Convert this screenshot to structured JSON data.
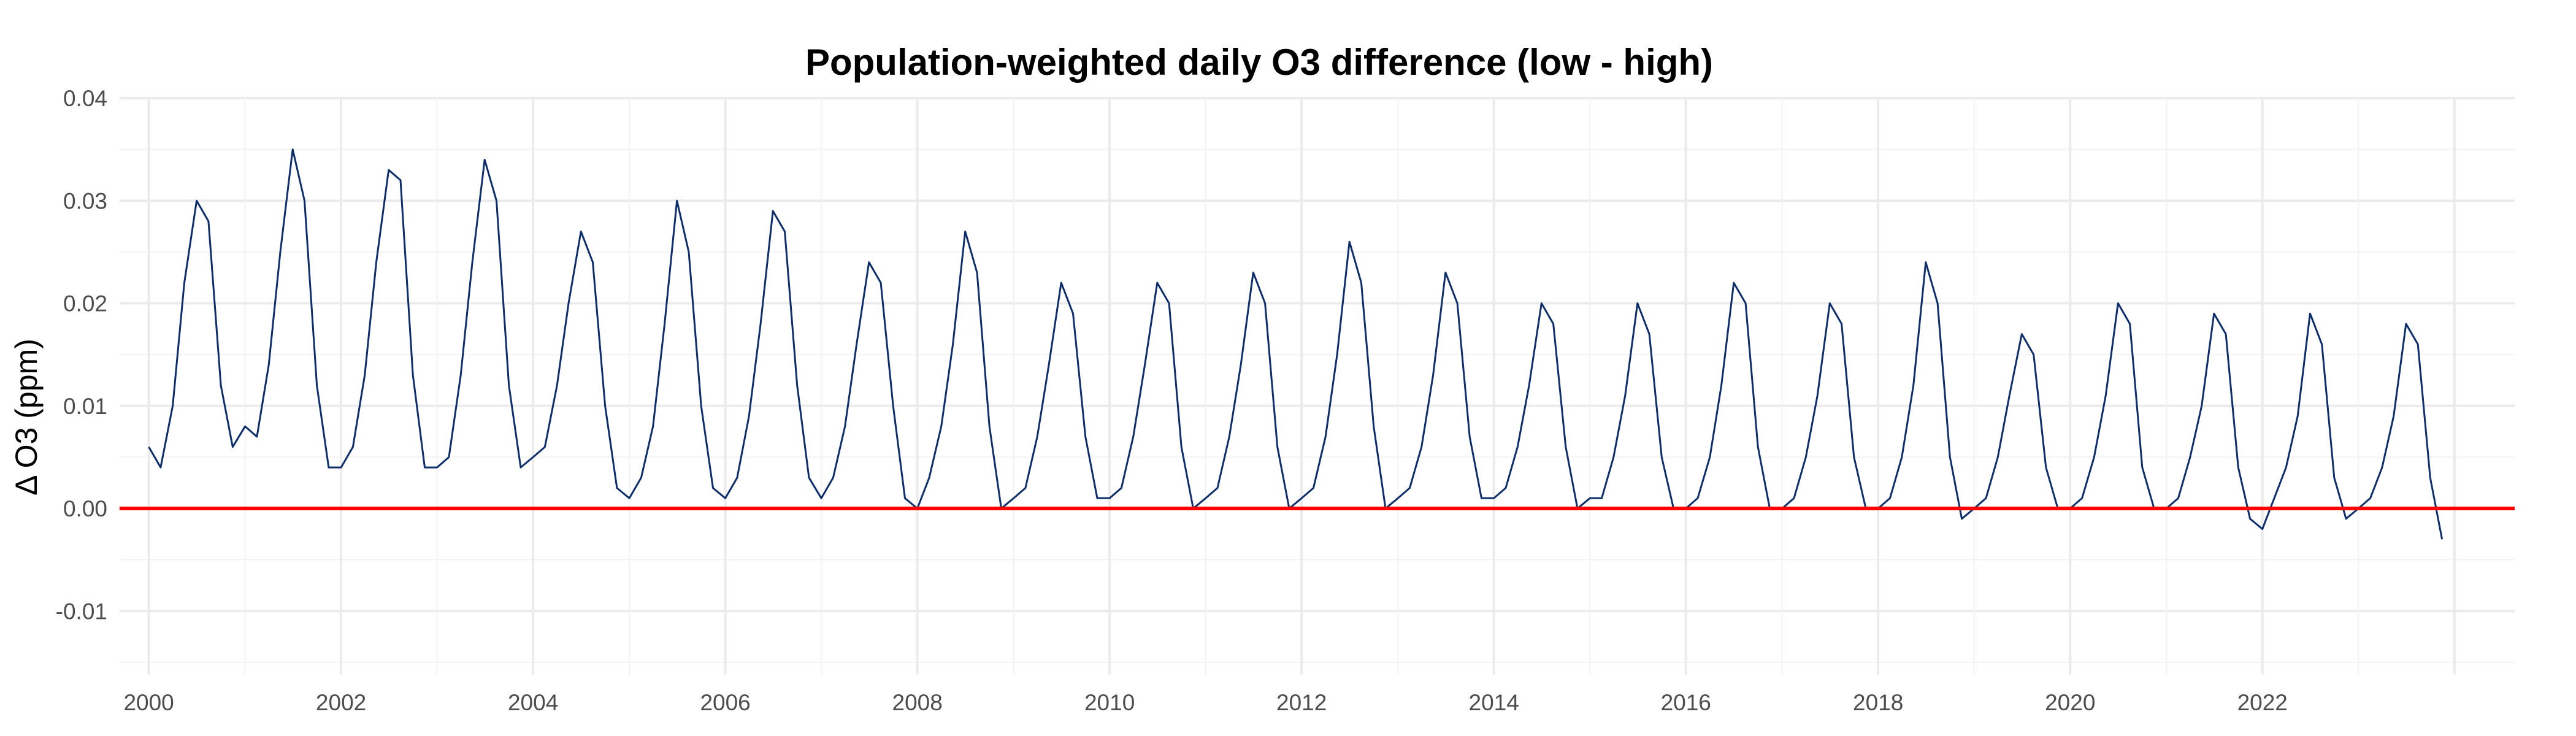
{
  "chart_data": {
    "type": "line",
    "title": "Population-weighted daily O3 difference (low - high)",
    "xlabel": "",
    "ylabel": "Δ O3 (ppm)",
    "x_unit": "date",
    "xlim": [
      "1999-09-12",
      "2024-08-17"
    ],
    "ylim": [
      -0.0162,
      0.04
    ],
    "x_ticks": [
      "2000",
      "2002",
      "2004",
      "2006",
      "2008",
      "2010",
      "2012",
      "2014",
      "2016",
      "2018",
      "2020",
      "2022"
    ],
    "y_ticks": [
      "-0.01",
      "0.00",
      "0.01",
      "0.02",
      "0.03",
      "0.04"
    ],
    "grid": true,
    "legend": "none",
    "series": [
      {
        "color": "#0d2e6b",
        "x": [
          "2000-01-01",
          "2000-02-15",
          "2000-04-01",
          "2000-05-15",
          "2000-07-01",
          "2000-08-15",
          "2000-10-01",
          "2000-11-15",
          "2001-01-01",
          "2001-02-15",
          "2001-04-01",
          "2001-05-15",
          "2001-07-01",
          "2001-08-15",
          "2001-10-01",
          "2001-11-15",
          "2002-01-01",
          "2002-02-15",
          "2002-04-01",
          "2002-05-15",
          "2002-07-01",
          "2002-08-15",
          "2002-10-01",
          "2002-11-15",
          "2003-01-01",
          "2003-02-15",
          "2003-04-01",
          "2003-05-15",
          "2003-07-01",
          "2003-08-15",
          "2003-10-01",
          "2003-11-15",
          "2004-01-01",
          "2004-02-15",
          "2004-04-01",
          "2004-05-15",
          "2004-07-01",
          "2004-08-15",
          "2004-10-01",
          "2004-11-15",
          "2005-01-01",
          "2005-02-15",
          "2005-04-01",
          "2005-05-15",
          "2005-07-01",
          "2005-08-15",
          "2005-10-01",
          "2005-11-15",
          "2006-01-01",
          "2006-02-15",
          "2006-04-01",
          "2006-05-15",
          "2006-07-01",
          "2006-08-15",
          "2006-10-01",
          "2006-11-15",
          "2007-01-01",
          "2007-02-15",
          "2007-04-01",
          "2007-05-15",
          "2007-07-01",
          "2007-08-15",
          "2007-10-01",
          "2007-11-15",
          "2008-01-01",
          "2008-02-15",
          "2008-04-01",
          "2008-05-15",
          "2008-07-01",
          "2008-08-15",
          "2008-10-01",
          "2008-11-15",
          "2009-01-01",
          "2009-02-15",
          "2009-04-01",
          "2009-05-15",
          "2009-07-01",
          "2009-08-15",
          "2009-10-01",
          "2009-11-15",
          "2010-01-01",
          "2010-02-15",
          "2010-04-01",
          "2010-05-15",
          "2010-07-01",
          "2010-08-15",
          "2010-10-01",
          "2010-11-15",
          "2011-01-01",
          "2011-02-15",
          "2011-04-01",
          "2011-05-15",
          "2011-07-01",
          "2011-08-15",
          "2011-10-01",
          "2011-11-15",
          "2012-01-01",
          "2012-02-15",
          "2012-04-01",
          "2012-05-15",
          "2012-07-01",
          "2012-08-15",
          "2012-10-01",
          "2012-11-15",
          "2013-01-01",
          "2013-02-15",
          "2013-04-01",
          "2013-05-15",
          "2013-07-01",
          "2013-08-15",
          "2013-10-01",
          "2013-11-15",
          "2014-01-01",
          "2014-02-15",
          "2014-04-01",
          "2014-05-15",
          "2014-07-01",
          "2014-08-15",
          "2014-10-01",
          "2014-11-15",
          "2015-01-01",
          "2015-02-15",
          "2015-04-01",
          "2015-05-15",
          "2015-07-01",
          "2015-08-15",
          "2015-10-01",
          "2015-11-15",
          "2016-01-01",
          "2016-02-15",
          "2016-04-01",
          "2016-05-15",
          "2016-07-01",
          "2016-08-15",
          "2016-10-01",
          "2016-11-15",
          "2017-01-01",
          "2017-02-15",
          "2017-04-01",
          "2017-05-15",
          "2017-07-01",
          "2017-08-15",
          "2017-10-01",
          "2017-11-15",
          "2018-01-01",
          "2018-02-15",
          "2018-04-01",
          "2018-05-15",
          "2018-07-01",
          "2018-08-15",
          "2018-10-01",
          "2018-11-15",
          "2019-01-01",
          "2019-02-15",
          "2019-04-01",
          "2019-05-15",
          "2019-07-01",
          "2019-08-15",
          "2019-10-01",
          "2019-11-15",
          "2020-01-01",
          "2020-02-15",
          "2020-04-01",
          "2020-05-15",
          "2020-07-01",
          "2020-08-15",
          "2020-10-01",
          "2020-11-15",
          "2021-01-01",
          "2021-02-15",
          "2021-04-01",
          "2021-05-15",
          "2021-07-01",
          "2021-08-15",
          "2021-10-01",
          "2021-11-15",
          "2022-01-01",
          "2022-02-15",
          "2022-04-01",
          "2022-05-15",
          "2022-07-01",
          "2022-08-15",
          "2022-10-01",
          "2022-11-15",
          "2023-01-01",
          "2023-02-15",
          "2023-04-01",
          "2023-05-15",
          "2023-07-01",
          "2023-08-15",
          "2023-10-01",
          "2023-11-15"
        ],
        "values": [
          0.006,
          0.004,
          0.01,
          0.022,
          0.03,
          0.028,
          0.012,
          0.006,
          0.008,
          0.007,
          0.014,
          0.025,
          0.035,
          0.03,
          0.012,
          0.004,
          0.004,
          0.006,
          0.013,
          0.024,
          0.033,
          0.032,
          0.013,
          0.004,
          0.004,
          0.005,
          0.013,
          0.024,
          0.034,
          0.03,
          0.012,
          0.004,
          0.005,
          0.006,
          0.012,
          0.02,
          0.027,
          0.024,
          0.01,
          0.002,
          0.001,
          0.003,
          0.008,
          0.018,
          0.03,
          0.025,
          0.01,
          0.002,
          0.001,
          0.003,
          0.009,
          0.018,
          0.029,
          0.027,
          0.012,
          0.003,
          0.001,
          0.003,
          0.008,
          0.016,
          0.024,
          0.022,
          0.01,
          0.001,
          0.0,
          0.003,
          0.008,
          0.016,
          0.027,
          0.023,
          0.008,
          0.0,
          0.001,
          0.002,
          0.007,
          0.014,
          0.022,
          0.019,
          0.007,
          0.001,
          0.001,
          0.002,
          0.007,
          0.014,
          0.022,
          0.02,
          0.006,
          0.0,
          0.001,
          0.002,
          0.007,
          0.014,
          0.023,
          0.02,
          0.006,
          0.0,
          0.001,
          0.002,
          0.007,
          0.015,
          0.026,
          0.022,
          0.008,
          0.0,
          0.001,
          0.002,
          0.006,
          0.013,
          0.023,
          0.02,
          0.007,
          0.001,
          0.001,
          0.002,
          0.006,
          0.012,
          0.02,
          0.018,
          0.006,
          0.0,
          0.001,
          0.001,
          0.005,
          0.011,
          0.02,
          0.017,
          0.005,
          0.0,
          0.0,
          0.001,
          0.005,
          0.012,
          0.022,
          0.02,
          0.006,
          0.0,
          0.0,
          0.001,
          0.005,
          0.011,
          0.02,
          0.018,
          0.005,
          0.0,
          0.0,
          0.001,
          0.005,
          0.012,
          0.024,
          0.02,
          0.005,
          -0.001,
          0.0,
          0.001,
          0.005,
          0.011,
          0.017,
          0.015,
          0.004,
          0.0,
          0.0,
          0.001,
          0.005,
          0.011,
          0.02,
          0.018,
          0.004,
          0.0,
          0.0,
          0.001,
          0.005,
          0.01,
          0.019,
          0.017,
          0.004,
          -0.001,
          -0.002,
          0.001,
          0.004,
          0.009,
          0.019,
          0.016,
          0.003,
          -0.001,
          0.0,
          0.001,
          0.004,
          0.009,
          0.018,
          0.016,
          0.003,
          -0.003
        ]
      },
      {
        "name": "",
        "color": "#ff0000",
        "x": [
          "1999-09-12",
          "2024-08-17"
        ],
        "values": [
          0,
          0
        ]
      }
    ]
  }
}
